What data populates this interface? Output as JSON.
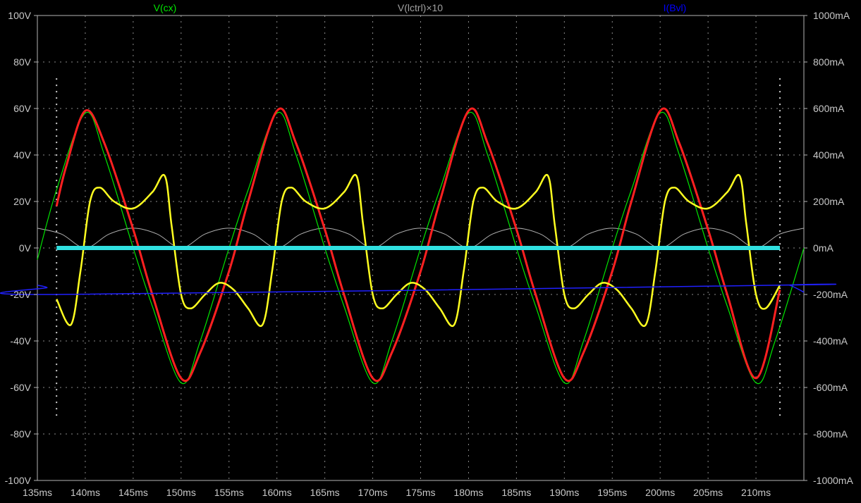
{
  "chart_data": {
    "type": "line",
    "title": "",
    "xlabel": "",
    "ylabel": "",
    "xlim": [
      135,
      215
    ],
    "ylim": [
      -100,
      100
    ],
    "y2lim": [
      -1000,
      1000
    ],
    "grid": true,
    "x_ticks": [
      135,
      140,
      145,
      150,
      155,
      160,
      165,
      170,
      175,
      180,
      185,
      190,
      195,
      200,
      205,
      210
    ],
    "x_tick_labels": [
      "135ms",
      "140ms",
      "145ms",
      "150ms",
      "155ms",
      "160ms",
      "165ms",
      "170ms",
      "175ms",
      "180ms",
      "185ms",
      "190ms",
      "195ms",
      "200ms",
      "205ms",
      "210ms"
    ],
    "y_ticks": [
      100,
      80,
      60,
      40,
      20,
      0,
      -20,
      -40,
      -60,
      -80,
      -100
    ],
    "y_tick_labels": [
      "100V",
      "80V",
      "60V",
      "40V",
      "20V",
      "0V",
      "-20V",
      "-40V",
      "-60V",
      "-80V",
      "-100V"
    ],
    "y2_tick_labels": [
      "1000mA",
      "800mA",
      "600mA",
      "400mA",
      "200mA",
      "0mA",
      "-200mA",
      "-400mA",
      "-600mA",
      "-800mA",
      "-1000mA"
    ],
    "legend": [
      {
        "name": "V(cx)",
        "color": "#00e600"
      },
      {
        "name": "V(lctrl)×10",
        "color": "#a0a0a0"
      },
      {
        "name": "I(Bvl)",
        "color": "#0000ff"
      }
    ],
    "series": [
      {
        "name": "V(cx)",
        "color": "#00e600",
        "axis": "left",
        "x": [
          135,
          137,
          140,
          142,
          145,
          147,
          150,
          152,
          155,
          157,
          160,
          162,
          165,
          167,
          170,
          172,
          175,
          177,
          180,
          182,
          185,
          187,
          190,
          192,
          195,
          197,
          200,
          202,
          205,
          207,
          210,
          212,
          215
        ],
        "values": [
          -5,
          25,
          58,
          40,
          0,
          -25,
          -58,
          -40,
          0,
          25,
          58,
          40,
          0,
          -25,
          -58,
          -40,
          0,
          25,
          58,
          40,
          0,
          -25,
          -58,
          -40,
          0,
          25,
          58,
          40,
          0,
          -25,
          -58,
          -40,
          0
        ]
      },
      {
        "color": "#ff2020",
        "axis": "left",
        "x": [
          137,
          138,
          140,
          142,
          145,
          147,
          150,
          152,
          155,
          157,
          160,
          162,
          165,
          167,
          170,
          172,
          175,
          177,
          180,
          182,
          185,
          187,
          190,
          192,
          195,
          197,
          200,
          202,
          205,
          207,
          210,
          212.5
        ],
        "values": [
          18,
          35,
          59,
          45,
          8,
          -20,
          -56,
          -45,
          -10,
          20,
          59,
          45,
          8,
          -20,
          -56,
          -45,
          -10,
          20,
          59,
          45,
          8,
          -20,
          -56,
          -45,
          -10,
          20,
          59,
          45,
          8,
          -20,
          -56,
          -18
        ]
      },
      {
        "name": "V(lctrl)×10",
        "color": "#b0b0b0",
        "axis": "left",
        "x": [
          135,
          137.5,
          140,
          142.5,
          145,
          147.5,
          150,
          152.5,
          155,
          157.5,
          160,
          162.5,
          165,
          167.5,
          170,
          172.5,
          175,
          177.5,
          180,
          182.5,
          185,
          187.5,
          190,
          192.5,
          195,
          197.5,
          200,
          202.5,
          205,
          207.5,
          210,
          212.5,
          215
        ],
        "values": [
          8.5,
          6,
          0,
          6,
          8.5,
          6,
          0,
          6,
          8.5,
          6,
          0,
          6,
          8.5,
          6,
          0,
          6,
          8.5,
          6,
          0,
          6,
          8.5,
          6,
          0,
          6,
          8.5,
          6,
          0,
          6,
          8.5,
          6,
          0,
          6,
          8.5
        ]
      },
      {
        "color": "#ffff20",
        "axis": "left",
        "x": [
          137,
          138.5,
          139.5,
          140.5,
          141.5,
          143,
          145,
          147,
          148.3,
          149,
          150,
          151,
          152.5,
          154,
          155.5,
          157,
          158.5,
          159.5,
          160.5,
          161.5,
          163,
          165,
          167,
          168.3,
          169,
          170,
          171,
          172.5,
          174,
          175.5,
          177,
          178.5,
          179.5,
          180.5,
          181.5,
          183,
          185,
          187,
          188.3,
          189,
          190,
          191,
          192.5,
          194,
          195.5,
          197,
          198.5,
          199.5,
          200.5,
          201.5,
          203,
          205,
          207,
          208.3,
          209,
          210,
          211,
          212.5
        ],
        "values": [
          -22,
          -33,
          -10,
          20,
          26,
          20,
          17,
          24,
          31,
          10,
          -20,
          -26,
          -20,
          -15,
          -18,
          -26,
          -33,
          -10,
          20,
          26,
          20,
          17,
          24,
          31,
          10,
          -20,
          -26,
          -20,
          -15,
          -18,
          -26,
          -33,
          -10,
          20,
          26,
          20,
          17,
          24,
          31,
          10,
          -20,
          -26,
          -20,
          -15,
          -18,
          -26,
          -33,
          -10,
          20,
          26,
          20,
          17,
          24,
          31,
          10,
          -20,
          -26,
          -16
        ]
      },
      {
        "name": "I(Bvl)",
        "color": "#2020ff",
        "axis": "right",
        "x": [
          135,
          136,
          137,
          212.5,
          213.5,
          215
        ],
        "values": [
          -160,
          -170,
          -200,
          -160,
          -160,
          -190
        ]
      },
      {
        "color": "#30e0e0",
        "axis": "left",
        "x": [
          137,
          212.5
        ],
        "values": [
          0,
          0
        ]
      }
    ]
  }
}
